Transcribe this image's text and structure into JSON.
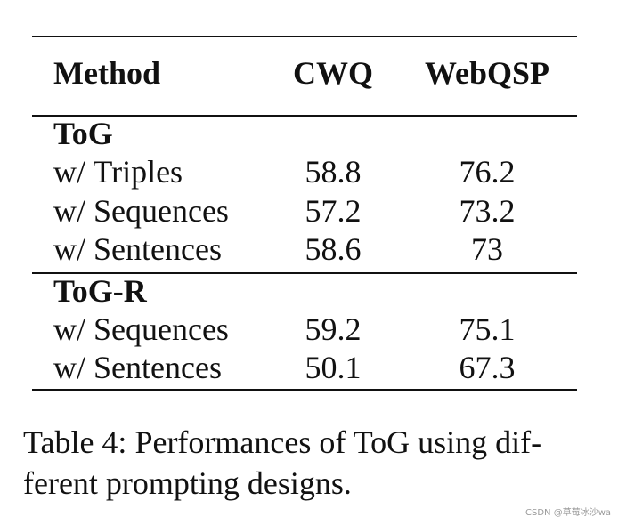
{
  "table": {
    "headers": [
      "Method",
      "CWQ",
      "WebQSP"
    ],
    "groups": [
      {
        "name": "ToG",
        "rows": [
          {
            "method": "w/ Triples",
            "cwq": "58.8",
            "webqsp": "76.2"
          },
          {
            "method": "w/ Sequences",
            "cwq": "57.2",
            "webqsp": "73.2"
          },
          {
            "method": "w/ Sentences",
            "cwq": "58.6",
            "webqsp": "73"
          }
        ]
      },
      {
        "name": "ToG-R",
        "rows": [
          {
            "method": "w/ Sequences",
            "cwq": "59.2",
            "webqsp": "75.1"
          },
          {
            "method": "w/ Sentences",
            "cwq": "50.1",
            "webqsp": "67.3"
          }
        ]
      }
    ]
  },
  "caption": {
    "line1": "Table 4: Performances of ToG using dif-",
    "line2": "ferent prompting designs."
  },
  "watermark": "CSDN @草莓冰沙wa"
}
